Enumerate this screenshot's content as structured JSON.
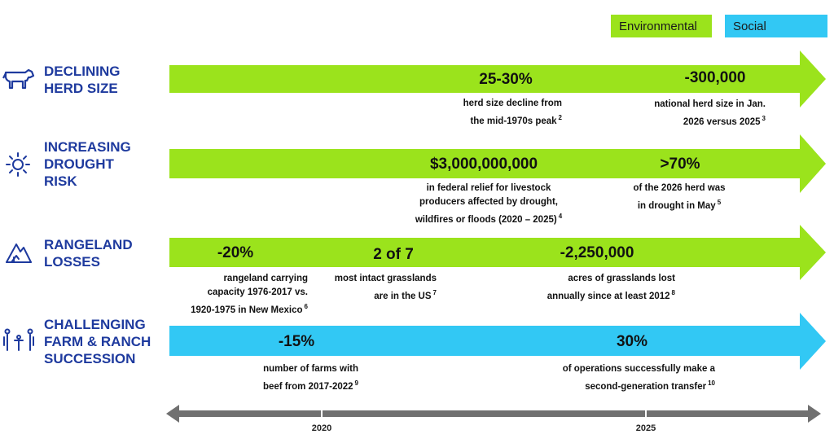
{
  "legend": {
    "environmental": {
      "label": "Environmental",
      "color": "#9be31c"
    },
    "social": {
      "label": "Social",
      "color": "#32c8f4"
    }
  },
  "rows": [
    {
      "icon": "cow-icon",
      "label_lines": [
        "DECLINING",
        "HERD SIZE"
      ],
      "category": "environmental",
      "stats": [
        {
          "value": "25-30%",
          "note_lines": [
            "herd size decline from",
            "the mid-1970s peak"
          ],
          "footnote": "2"
        },
        {
          "value": "-300,000",
          "note_lines": [
            "national herd size in Jan.",
            "2026 versus 2025"
          ],
          "footnote": "3"
        }
      ]
    },
    {
      "icon": "sun-icon",
      "label_lines": [
        "INCREASING",
        "DROUGHT",
        "RISK"
      ],
      "category": "environmental",
      "stats": [
        {
          "value": "$3,000,000,000",
          "note_lines": [
            "in federal relief for livestock",
            "producers affected by drought,",
            "wildfires or floods (2020 – 2025)"
          ],
          "footnote": "4"
        },
        {
          "value": ">70%",
          "note_lines": [
            "of the 2026 herd was",
            "in drought in May"
          ],
          "footnote": "5"
        }
      ]
    },
    {
      "icon": "mountain-icon",
      "label_lines": [
        "RANGELAND",
        "LOSSES"
      ],
      "category": "environmental",
      "stats": [
        {
          "value": "-20%",
          "note_lines": [
            "rangeland carrying",
            "capacity 1976-2017 vs.",
            "1920-1975 in New Mexico"
          ],
          "footnote": "6"
        },
        {
          "value": "2 of 7",
          "note_lines": [
            "most intact grasslands",
            "are in the US"
          ],
          "footnote": "7"
        },
        {
          "value": "-2,250,000",
          "note_lines": [
            "acres of grasslands lost",
            "annually since at least 2012"
          ],
          "footnote": "8"
        }
      ]
    },
    {
      "icon": "family-icon",
      "label_lines": [
        "CHALLENGING",
        "FARM & RANCH",
        "SUCCESSION"
      ],
      "category": "social",
      "stats": [
        {
          "value": "-15%",
          "note_lines": [
            "number of farms with",
            "beef from 2017-2022"
          ],
          "footnote": "9"
        },
        {
          "value": "30%",
          "note_lines": [
            "of operations successfully make a",
            "second-generation transfer"
          ],
          "footnote": "10"
        }
      ]
    }
  ],
  "timeline": {
    "color": "#707070",
    "ticks": [
      {
        "label": "2020"
      },
      {
        "label": "2025"
      }
    ]
  }
}
